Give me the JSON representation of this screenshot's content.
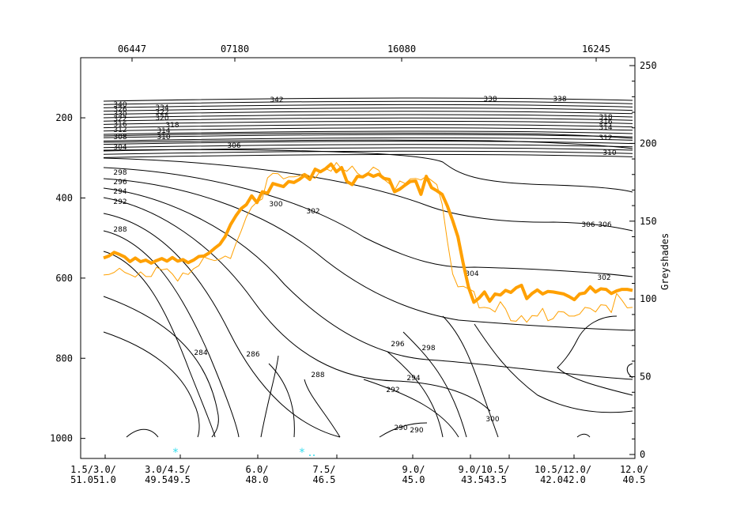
{
  "chart_data": {
    "type": "line",
    "title": "",
    "left_axis": {
      "ticks": [
        200,
        400,
        600,
        800,
        1000
      ],
      "range": [
        50,
        1050
      ],
      "inverted": true
    },
    "right_axis": {
      "label": "Greyshades",
      "ticks": [
        0,
        50,
        100,
        150,
        200,
        250
      ],
      "range": [
        0,
        250
      ]
    },
    "top_labels": [
      "06447",
      "07180",
      "16080",
      "16245"
    ],
    "bottom_labels": [
      [
        "1.5/",
        "51.0"
      ],
      [
        "3.0/",
        "51.0"
      ],
      [
        "3.0/",
        "49.5"
      ],
      [
        "4.5/",
        "49.5"
      ],
      [
        "6.0/",
        "48.0"
      ],
      [
        "7.5/",
        "46.5"
      ],
      [
        "9.0/",
        "45.0"
      ],
      [
        "9.0/",
        "43.5"
      ],
      [
        "10.5/",
        "43.5"
      ],
      [
        "10.5/",
        "42.0"
      ],
      [
        "12.0/",
        "42.0"
      ],
      [
        "12.0/",
        "40.5"
      ]
    ],
    "contour_labels": [
      "342",
      "338",
      "338",
      "340",
      "334",
      "326",
      "322",
      "330",
      "320",
      "322",
      "318",
      "316",
      "314",
      "312",
      "310",
      "308",
      "304",
      "306",
      "306",
      "298",
      "296",
      "294",
      "292",
      "288",
      "300",
      "302",
      "304",
      "302",
      "306",
      "310",
      "312",
      "314",
      "316",
      "318",
      "284",
      "286",
      "288",
      "290",
      "292",
      "294",
      "296",
      "298",
      "290",
      "300"
    ],
    "series": [
      {
        "color": "#ffa000",
        "values": [
          [
            0,
            0.167
          ],
          [
            0.01,
            0.171
          ],
          [
            0.02,
            0.178
          ],
          [
            0.03,
            0.174
          ],
          [
            0.04,
            0.169
          ],
          [
            0.05,
            0.16
          ],
          [
            0.06,
            0.167
          ],
          [
            0.07,
            0.16
          ],
          [
            0.08,
            0.163
          ],
          [
            0.09,
            0.157
          ],
          [
            0.1,
            0.162
          ],
          [
            0.11,
            0.166
          ],
          [
            0.12,
            0.161
          ],
          [
            0.13,
            0.168
          ],
          [
            0.14,
            0.161
          ],
          [
            0.15,
            0.164
          ],
          [
            0.16,
            0.158
          ],
          [
            0.17,
            0.163
          ],
          [
            0.18,
            0.17
          ],
          [
            0.19,
            0.171
          ],
          [
            0.2,
            0.177
          ],
          [
            0.21,
            0.186
          ],
          [
            0.22,
            0.194
          ],
          [
            0.23,
            0.209
          ],
          [
            0.24,
            0.232
          ],
          [
            0.25,
            0.249
          ],
          [
            0.26,
            0.263
          ],
          [
            0.27,
            0.271
          ],
          [
            0.28,
            0.288
          ],
          [
            0.29,
            0.275
          ],
          [
            0.3,
            0.296
          ],
          [
            0.31,
            0.293
          ],
          [
            0.32,
            0.312
          ],
          [
            0.33,
            0.309
          ],
          [
            0.34,
            0.306
          ],
          [
            0.35,
            0.316
          ],
          [
            0.36,
            0.314
          ],
          [
            0.37,
            0.32
          ],
          [
            0.38,
            0.328
          ],
          [
            0.39,
            0.32
          ],
          [
            0.4,
            0.34
          ],
          [
            0.41,
            0.335
          ],
          [
            0.42,
            0.341
          ],
          [
            0.43,
            0.35
          ],
          [
            0.44,
            0.335
          ],
          [
            0.45,
            0.343
          ],
          [
            0.46,
            0.316
          ],
          [
            0.47,
            0.31
          ],
          [
            0.48,
            0.326
          ],
          [
            0.49,
            0.325
          ],
          [
            0.5,
            0.331
          ],
          [
            0.51,
            0.326
          ],
          [
            0.52,
            0.33
          ],
          [
            0.53,
            0.322
          ],
          [
            0.54,
            0.32
          ],
          [
            0.55,
            0.296
          ],
          [
            0.56,
            0.301
          ],
          [
            0.57,
            0.309
          ],
          [
            0.58,
            0.316
          ],
          [
            0.59,
            0.317
          ],
          [
            0.6,
            0.291
          ],
          [
            0.61,
            0.326
          ],
          [
            0.62,
            0.304
          ],
          [
            0.63,
            0.298
          ],
          [
            0.64,
            0.291
          ],
          [
            0.65,
            0.268
          ],
          [
            0.66,
            0.24
          ],
          [
            0.67,
            0.208
          ],
          [
            0.68,
            0.156
          ],
          [
            0.69,
            0.11
          ],
          [
            0.7,
            0.081
          ],
          [
            0.71,
            0.089
          ],
          [
            0.72,
            0.101
          ],
          [
            0.73,
            0.083
          ],
          [
            0.74,
            0.097
          ],
          [
            0.75,
            0.095
          ],
          [
            0.76,
            0.104
          ],
          [
            0.77,
            0.1
          ],
          [
            0.78,
            0.109
          ],
          [
            0.79,
            0.114
          ],
          [
            0.8,
            0.088
          ],
          [
            0.81,
            0.098
          ],
          [
            0.82,
            0.105
          ],
          [
            0.83,
            0.097
          ],
          [
            0.84,
            0.102
          ],
          [
            0.85,
            0.101
          ],
          [
            0.86,
            0.099
          ],
          [
            0.87,
            0.097
          ],
          [
            0.88,
            0.092
          ],
          [
            0.89,
            0.086
          ],
          [
            0.9,
            0.097
          ],
          [
            0.91,
            0.099
          ],
          [
            0.92,
            0.111
          ],
          [
            0.93,
            0.101
          ],
          [
            0.94,
            0.107
          ],
          [
            0.95,
            0.106
          ],
          [
            0.96,
            0.098
          ],
          [
            0.97,
            0.103
          ],
          [
            0.98,
            0.106
          ],
          [
            0.99,
            0.106
          ],
          [
            1,
            0.104
          ]
        ]
      },
      {
        "color": "#ffa000",
        "values": [
          [
            0,
            0.134
          ],
          [
            0.01,
            0.135
          ],
          [
            0.02,
            0.139
          ],
          [
            0.03,
            0.147
          ],
          [
            0.04,
            0.139
          ],
          [
            0.05,
            0.135
          ],
          [
            0.06,
            0.13
          ],
          [
            0.07,
            0.14
          ],
          [
            0.08,
            0.131
          ],
          [
            0.09,
            0.131
          ],
          [
            0.1,
            0.149
          ],
          [
            0.11,
            0.144
          ],
          [
            0.12,
            0.146
          ],
          [
            0.13,
            0.136
          ],
          [
            0.14,
            0.122
          ],
          [
            0.15,
            0.138
          ],
          [
            0.16,
            0.135
          ],
          [
            0.17,
            0.146
          ],
          [
            0.18,
            0.152
          ],
          [
            0.19,
            0.169
          ],
          [
            0.2,
            0.165
          ],
          [
            0.21,
            0.162
          ],
          [
            0.22,
            0.165
          ],
          [
            0.23,
            0.171
          ],
          [
            0.24,
            0.166
          ],
          [
            0.25,
            0.195
          ],
          [
            0.26,
            0.219
          ],
          [
            0.27,
            0.247
          ],
          [
            0.28,
            0.266
          ],
          [
            0.29,
            0.276
          ],
          [
            0.3,
            0.282
          ],
          [
            0.31,
            0.323
          ],
          [
            0.32,
            0.332
          ],
          [
            0.33,
            0.331
          ],
          [
            0.34,
            0.321
          ],
          [
            0.35,
            0.325
          ],
          [
            0.36,
            0.325
          ],
          [
            0.37,
            0.327
          ],
          [
            0.38,
            0.332
          ],
          [
            0.39,
            0.326
          ],
          [
            0.4,
            0.322
          ],
          [
            0.41,
            0.337
          ],
          [
            0.42,
            0.341
          ],
          [
            0.43,
            0.336
          ],
          [
            0.44,
            0.353
          ],
          [
            0.45,
            0.34
          ],
          [
            0.46,
            0.336
          ],
          [
            0.47,
            0.346
          ],
          [
            0.48,
            0.332
          ],
          [
            0.49,
            0.325
          ],
          [
            0.5,
            0.333
          ],
          [
            0.51,
            0.344
          ],
          [
            0.52,
            0.338
          ],
          [
            0.53,
            0.32
          ],
          [
            0.54,
            0.312
          ],
          [
            0.55,
            0.299
          ],
          [
            0.56,
            0.317
          ],
          [
            0.57,
            0.312
          ],
          [
            0.58,
            0.321
          ],
          [
            0.59,
            0.322
          ],
          [
            0.6,
            0.319
          ],
          [
            0.61,
            0.326
          ],
          [
            0.62,
            0.318
          ],
          [
            0.63,
            0.31
          ],
          [
            0.64,
            0.272
          ],
          [
            0.65,
            0.199
          ],
          [
            0.66,
            0.136
          ],
          [
            0.67,
            0.111
          ],
          [
            0.68,
            0.112
          ],
          [
            0.69,
            0.107
          ],
          [
            0.7,
            0.102
          ],
          [
            0.71,
            0.07
          ],
          [
            0.72,
            0.071
          ],
          [
            0.73,
            0.069
          ],
          [
            0.74,
            0.062
          ],
          [
            0.75,
            0.082
          ],
          [
            0.76,
            0.068
          ],
          [
            0.77,
            0.045
          ],
          [
            0.78,
            0.044
          ],
          [
            0.79,
            0.055
          ],
          [
            0.8,
            0.042
          ],
          [
            0.81,
            0.055
          ],
          [
            0.82,
            0.054
          ],
          [
            0.83,
            0.069
          ],
          [
            0.84,
            0.045
          ],
          [
            0.85,
            0.049
          ],
          [
            0.86,
            0.063
          ],
          [
            0.87,
            0.062
          ],
          [
            0.88,
            0.054
          ],
          [
            0.89,
            0.054
          ],
          [
            0.9,
            0.058
          ],
          [
            0.91,
            0.071
          ],
          [
            0.92,
            0.069
          ],
          [
            0.93,
            0.062
          ],
          [
            0.94,
            0.076
          ],
          [
            0.95,
            0.075
          ],
          [
            0.96,
            0.061
          ],
          [
            0.97,
            0.098
          ],
          [
            0.98,
            0.085
          ],
          [
            0.99,
            0.07
          ],
          [
            1,
            0.071
          ]
        ]
      }
    ]
  }
}
